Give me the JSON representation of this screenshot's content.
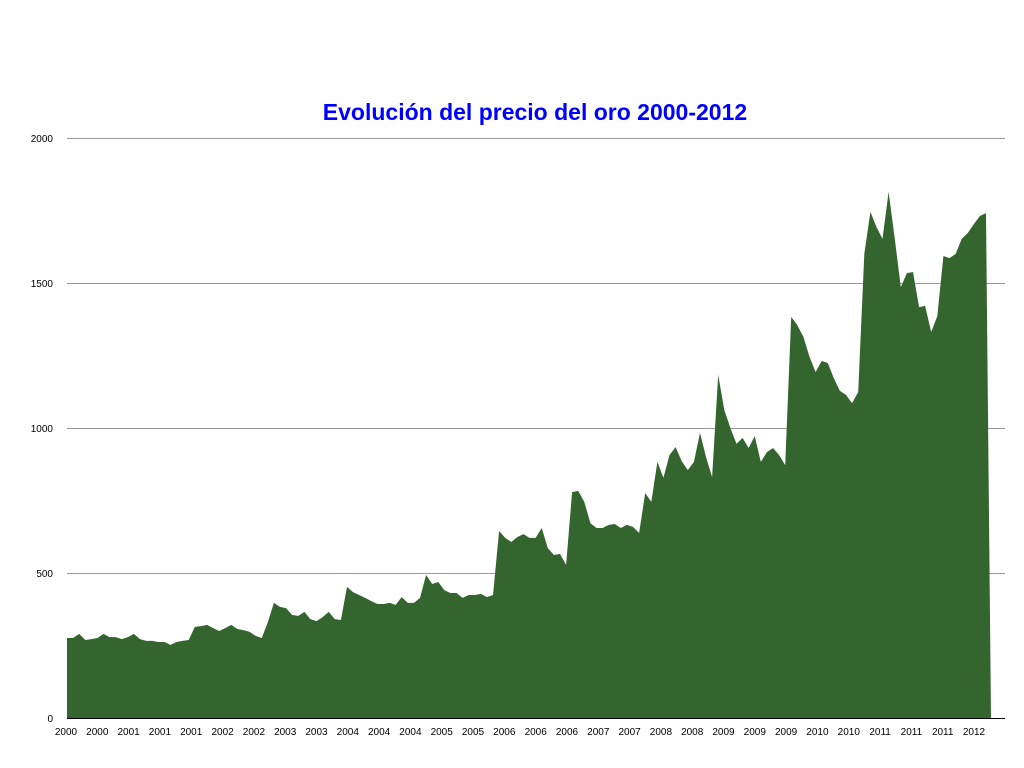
{
  "chart_data": {
    "type": "area",
    "title": "Evolución del precio del oro 2000-2012",
    "xlabel": "",
    "ylabel": "",
    "ylim": [
      0,
      2000
    ],
    "yticks": [
      0,
      500,
      1000,
      1500,
      2000
    ],
    "grid": true,
    "legend": null,
    "fill_color": "#35652f",
    "title_color": "#0000ff",
    "x_tick_labels": [
      "2000",
      "2000",
      "2001",
      "2001",
      "2001",
      "2002",
      "2002",
      "2003",
      "2003",
      "2004",
      "2004",
      "2004",
      "2005",
      "2005",
      "2006",
      "2006",
      "2006",
      "2007",
      "2007",
      "2008",
      "2008",
      "2009",
      "2009",
      "2009",
      "2010",
      "2010",
      "2011",
      "2011",
      "2011",
      "2012"
    ],
    "series": [
      {
        "name": "Precio del oro",
        "values": [
          276,
          276,
          290,
          269,
          272,
          276,
          290,
          279,
          279,
          272,
          279,
          290,
          272,
          266,
          266,
          262,
          262,
          252,
          262,
          266,
          269,
          314,
          317,
          321,
          310,
          300,
          310,
          321,
          307,
          303,
          297,
          283,
          276,
          330,
          397,
          383,
          379,
          355,
          352,
          366,
          341,
          334,
          348,
          366,
          341,
          338,
          452,
          434,
          424,
          414,
          403,
          393,
          393,
          397,
          390,
          417,
          397,
          397,
          414,
          493,
          462,
          469,
          441,
          431,
          431,
          414,
          424,
          424,
          428,
          417,
          424,
          645,
          621,
          607,
          624,
          634,
          621,
          621,
          655,
          586,
          562,
          566,
          528,
          779,
          783,
          745,
          672,
          655,
          655,
          666,
          669,
          655,
          666,
          659,
          638,
          776,
          745,
          883,
          828,
          907,
          934,
          886,
          855,
          883,
          983,
          900,
          831,
          1183,
          1062,
          1000,
          945,
          966,
          931,
          972,
          883,
          917,
          931,
          907,
          872,
          1383,
          1355,
          1314,
          1245,
          1193,
          1231,
          1224,
          1172,
          1128,
          1114,
          1086,
          1124,
          1600,
          1745,
          1693,
          1652,
          1814,
          1655,
          1486,
          1534,
          1538,
          1417,
          1421,
          1331,
          1386,
          1593,
          1586,
          1600,
          1652,
          1672,
          1703,
          1731,
          1741
        ]
      }
    ]
  }
}
